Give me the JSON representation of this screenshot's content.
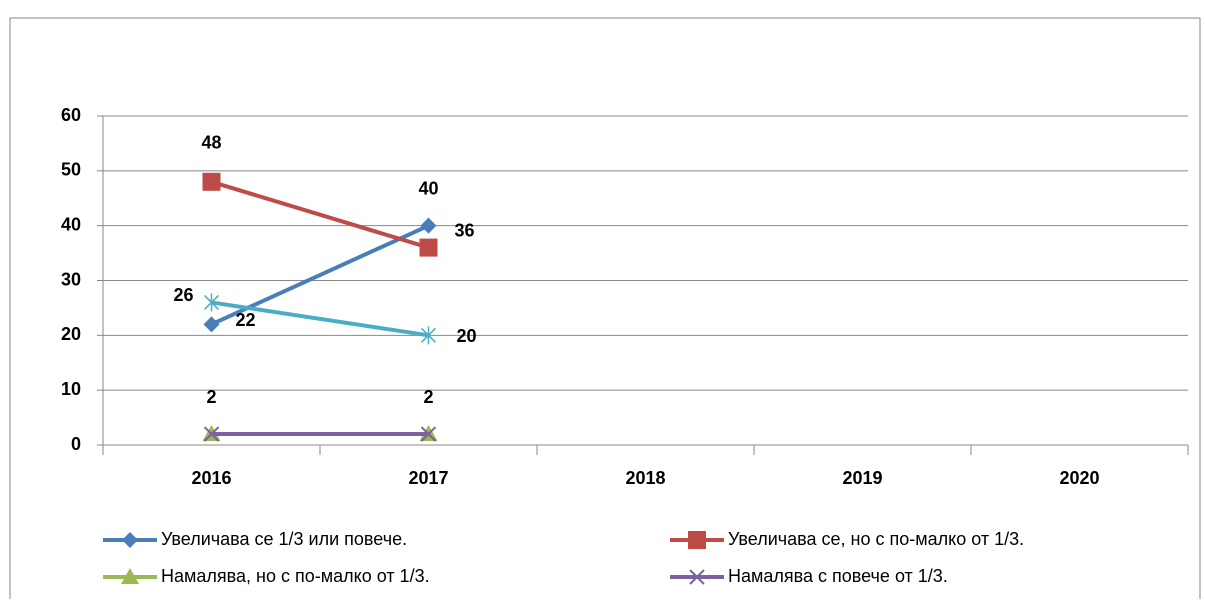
{
  "chart_data": {
    "type": "line",
    "categories": [
      "2016",
      "2017",
      "2018",
      "2019",
      "2020"
    ],
    "series": [
      {
        "name": "Увеличава се 1/3 или повече.",
        "color": "#4a7ebb",
        "marker": "diamond",
        "labels": true,
        "values": [
          22,
          40,
          null,
          null,
          null
        ]
      },
      {
        "name": "Увеличава се, но с по-малко от 1/3.",
        "color": "#be4b48",
        "marker": "square",
        "labels": true,
        "values": [
          48,
          36,
          null,
          null,
          null
        ]
      },
      {
        "name": "Намалява, но с по-малко от 1/3.",
        "color": "#98b954",
        "marker": "triangle",
        "labels": false,
        "values": [
          2,
          2,
          null,
          null,
          null
        ]
      },
      {
        "name": "Намалява с повече от 1/3.",
        "color": "#7d60a0",
        "marker": "x",
        "labels": true,
        "values": [
          2,
          2,
          null,
          null,
          null
        ]
      },
      {
        "color": "#4bacc6",
        "marker": "star",
        "labels": true,
        "values": [
          26,
          20,
          null,
          null,
          null
        ]
      }
    ],
    "ylim": [
      0,
      60
    ],
    "yticks": [
      0,
      10,
      20,
      30,
      40,
      50,
      60
    ],
    "grid": true
  }
}
